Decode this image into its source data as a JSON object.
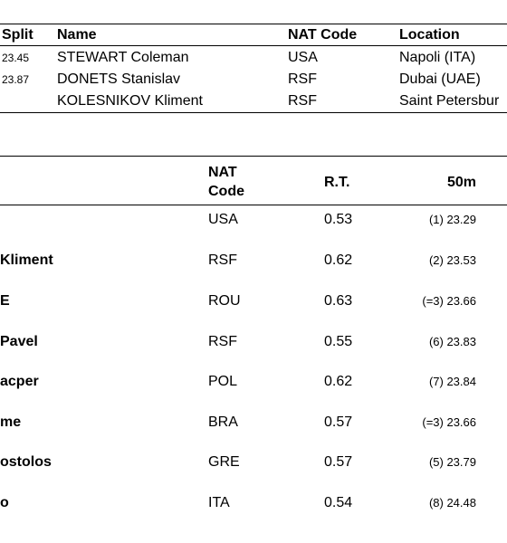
{
  "top_table": {
    "headers": {
      "split": "Split",
      "name": "Name",
      "nat_code": "NAT Code",
      "location": "Location"
    },
    "rows": [
      {
        "split": "23.45",
        "name": "STEWART Coleman",
        "nat": "USA",
        "location": "Napoli (ITA)"
      },
      {
        "split": "23.87",
        "name": "DONETS Stanislav",
        "nat": "RSF",
        "location": "Dubai (UAE)"
      },
      {
        "split": "",
        "name": "KOLESNIKOV Kliment",
        "nat": "RSF",
        "location": "Saint Petersbur"
      }
    ]
  },
  "results_table": {
    "headers": {
      "nat_line1": "NAT",
      "nat_line2": "Code",
      "rt": "R.T.",
      "split50": "50m"
    },
    "rows": [
      {
        "name": "",
        "nat": "USA",
        "rt": "0.53",
        "split50": "(1) 23.29"
      },
      {
        "name": "Kliment",
        "nat": "RSF",
        "rt": "0.62",
        "split50": "(2) 23.53"
      },
      {
        "name": "E",
        "nat": "ROU",
        "rt": "0.63",
        "split50": "(=3) 23.66"
      },
      {
        "name": "Pavel",
        "nat": "RSF",
        "rt": "0.55",
        "split50": "(6) 23.83"
      },
      {
        "name": "acper",
        "nat": "POL",
        "rt": "0.62",
        "split50": "(7) 23.84"
      },
      {
        "name": "me",
        "nat": "BRA",
        "rt": "0.57",
        "split50": "(=3) 23.66"
      },
      {
        "name": "ostolos",
        "nat": "GRE",
        "rt": "0.57",
        "split50": "(5) 23.79"
      },
      {
        "name": "o",
        "nat": "ITA",
        "rt": "0.54",
        "split50": "(8) 24.48"
      }
    ]
  }
}
